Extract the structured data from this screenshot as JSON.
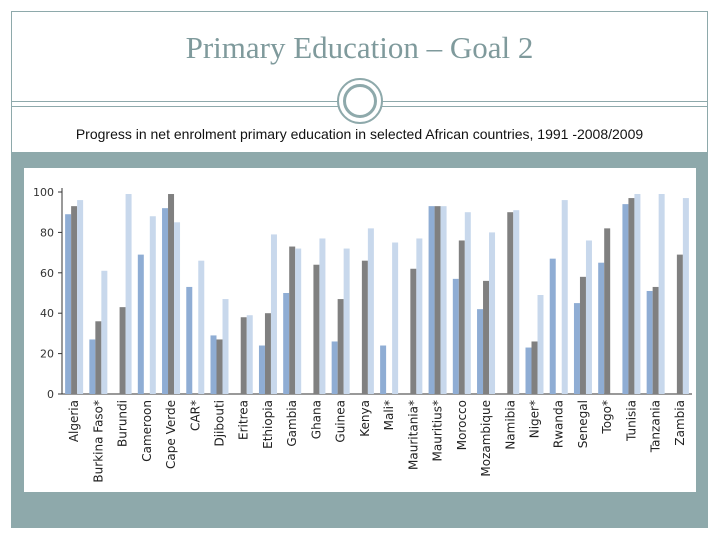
{
  "slide": {
    "title": "Primary Education – Goal 2",
    "subtitle": "Progress in net enrolment primary education in selected African countries, 1991 -2008/2009"
  },
  "colors": {
    "accent": "#8ea9ab",
    "series_1991": "#8fadd4",
    "series_2000": "#808080",
    "series_2009": "#c8d8ec"
  },
  "chart_data": {
    "type": "bar",
    "title": "",
    "xlabel": "",
    "ylabel": "",
    "ylim": [
      0,
      100
    ],
    "yticks": [
      0,
      20,
      40,
      60,
      80,
      100
    ],
    "grid": false,
    "legend": "none",
    "categories": [
      "Algeria",
      "Burkina Faso*",
      "Burundi",
      "Cameroon",
      "Cape Verde",
      "CAR*",
      "Djibouti",
      "Eritrea",
      "Ethiopia",
      "Gambia",
      "Ghana",
      "Guinea",
      "Kenya",
      "Mali*",
      "Mauritania*",
      "Mauritius*",
      "Morocco",
      "Mozambique",
      "Namibia",
      "Niger*",
      "Rwanda",
      "Senegal",
      "Togo*",
      "Tunisia",
      "Tanzania",
      "Zambia"
    ],
    "series": [
      {
        "values": [
          89,
          27,
          null,
          69,
          92,
          53,
          29,
          null,
          24,
          50,
          null,
          26,
          null,
          24,
          null,
          93,
          57,
          42,
          null,
          23,
          67,
          45,
          65,
          94,
          51,
          null
        ]
      },
      {
        "values": [
          93,
          36,
          43,
          null,
          99,
          null,
          27,
          38,
          40,
          73,
          64,
          47,
          66,
          null,
          62,
          93,
          76,
          56,
          90,
          26,
          null,
          58,
          82,
          97,
          53,
          69
        ]
      },
      {
        "values": [
          96,
          61,
          99,
          88,
          85,
          66,
          47,
          39,
          79,
          72,
          77,
          72,
          82,
          75,
          77,
          93,
          90,
          80,
          91,
          49,
          96,
          76,
          null,
          99,
          99,
          97
        ]
      }
    ]
  }
}
